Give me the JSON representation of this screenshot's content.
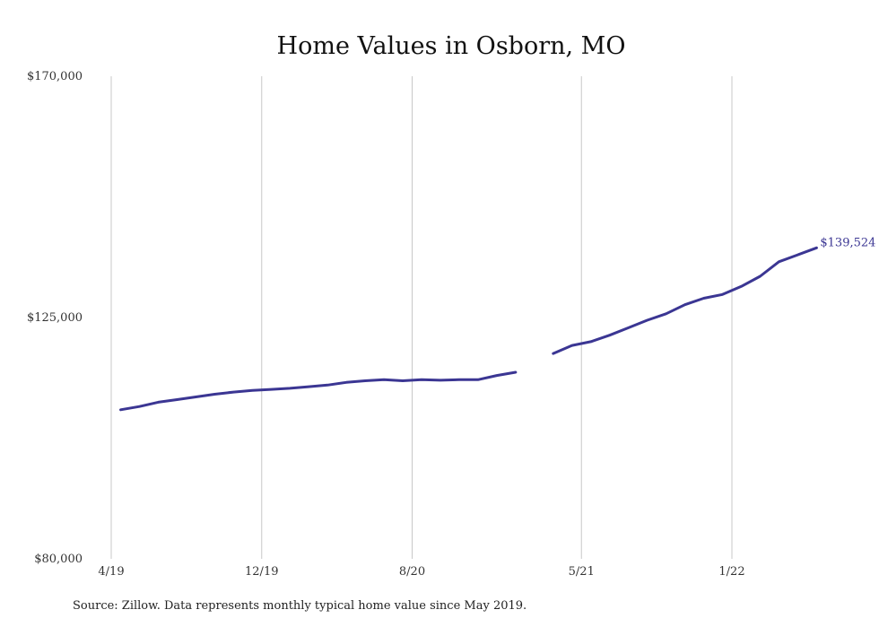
{
  "chart_data": {
    "type": "line",
    "title": "Home Values in Osborn, MO",
    "xlabel": "",
    "ylabel": "",
    "ylim": [
      80000,
      170000
    ],
    "y_ticks": [
      {
        "value": 170000,
        "label": "$170,000"
      },
      {
        "value": 125000,
        "label": "$125,000"
      },
      {
        "value": 80000,
        "label": "$80,000"
      }
    ],
    "x_ticks": [
      {
        "month_index": 0,
        "label": "4/19"
      },
      {
        "month_index": 8,
        "label": "12/19"
      },
      {
        "month_index": 16,
        "label": "8/20"
      },
      {
        "month_index": 25,
        "label": "5/21"
      },
      {
        "month_index": 33,
        "label": "1/22"
      }
    ],
    "grid": {
      "vertical": true,
      "horizontal": false
    },
    "line_color": "#3b3693",
    "series": [
      {
        "points": [
          {
            "month_index": 0.5,
            "value": 107800
          },
          {
            "month_index": 1.5,
            "value": 108400
          },
          {
            "month_index": 2.5,
            "value": 109200
          },
          {
            "month_index": 3.5,
            "value": 109700
          },
          {
            "month_index": 4.5,
            "value": 110200
          },
          {
            "month_index": 5.5,
            "value": 110700
          },
          {
            "month_index": 6.5,
            "value": 111100
          },
          {
            "month_index": 7.5,
            "value": 111400
          },
          {
            "month_index": 8.5,
            "value": 111600
          },
          {
            "month_index": 9.5,
            "value": 111800
          },
          {
            "month_index": 10.5,
            "value": 112100
          },
          {
            "month_index": 11.5,
            "value": 112400
          },
          {
            "month_index": 12.5,
            "value": 112900
          },
          {
            "month_index": 13.5,
            "value": 113200
          },
          {
            "month_index": 14.5,
            "value": 113400
          },
          {
            "month_index": 15.5,
            "value": 113200
          },
          {
            "month_index": 16.5,
            "value": 113400
          },
          {
            "month_index": 17.5,
            "value": 113300
          },
          {
            "month_index": 18.5,
            "value": 113400
          },
          {
            "month_index": 19.5,
            "value": 113400
          },
          {
            "month_index": 20.5,
            "value": 114200
          },
          {
            "month_index": 21.5,
            "value": 114800
          },
          {
            "month_index": null,
            "value": null
          },
          {
            "month_index": 23.5,
            "value": 118300
          },
          {
            "month_index": 24.5,
            "value": 119800
          },
          {
            "month_index": 25.5,
            "value": 120500
          },
          {
            "month_index": 26.5,
            "value": 121700
          },
          {
            "month_index": 27.5,
            "value": 123100
          },
          {
            "month_index": 28.5,
            "value": 124500
          },
          {
            "month_index": 29.5,
            "value": 125700
          },
          {
            "month_index": 30.5,
            "value": 127400
          },
          {
            "month_index": 31.5,
            "value": 128600
          },
          {
            "month_index": 32.5,
            "value": 129300
          },
          {
            "month_index": 33.5,
            "value": 130800
          },
          {
            "month_index": 34.5,
            "value": 132700
          },
          {
            "month_index": 35.5,
            "value": 135400
          },
          {
            "month_index": 36.5,
            "value": 136700
          },
          {
            "month_index": 37.5,
            "value": 138000
          }
        ],
        "end_label": "$139,524"
      }
    ]
  },
  "source_note": "Source: Zillow. Data represents monthly typical home value since May 2019."
}
